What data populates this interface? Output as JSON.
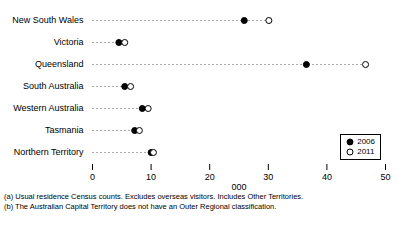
{
  "chart_data": {
    "type": "dot",
    "orientation": "horizontal",
    "categories": [
      "New South Wales",
      "Victoria",
      "Queensland",
      "South Australia",
      "Western Australia",
      "Tasmania",
      "Northern Territory"
    ],
    "series": [
      {
        "name": "2006",
        "color": "#000000",
        "marker": "circle",
        "values": [
          25.9,
          4.5,
          36.5,
          5.5,
          8.5,
          7.2,
          10.0
        ]
      },
      {
        "name": "2011",
        "color": "#000000",
        "marker": "open_circle",
        "values": [
          30.1,
          5.5,
          46.6,
          6.5,
          9.5,
          8.0,
          10.4
        ]
      }
    ],
    "xlabel": "000",
    "xlim": [
      0,
      50
    ],
    "xticks": [
      0,
      10,
      20,
      30,
      40,
      50
    ],
    "color": "#aaaaaa",
    "line_style": "dashed",
    "grid": false,
    "legend": "lower right",
    "annotations": [
      "(a) Usual residence Census counts.  Excludes overseas visitors.  Includes Other Territories.",
      "(b) The Australian Capital Territory does not have an Outer Regional classification."
    ]
  }
}
